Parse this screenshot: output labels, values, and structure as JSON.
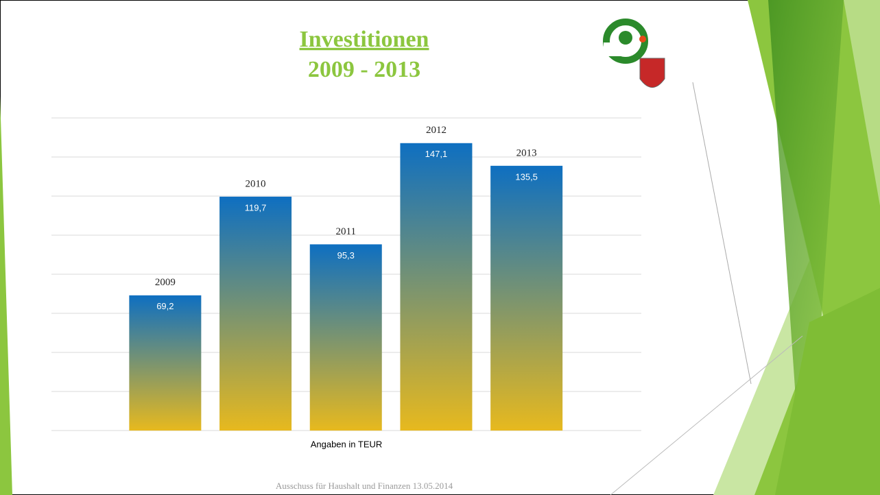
{
  "chart_data": {
    "type": "bar",
    "title": "Investitionen",
    "subtitle": "2009 - 2013",
    "categories": [
      "2009",
      "2010",
      "2011",
      "2012",
      "2013"
    ],
    "values": [
      69.2,
      119.7,
      95.3,
      147.1,
      135.5
    ],
    "value_labels": [
      "69,2",
      "119,7",
      "95,3",
      "147,1",
      "135,5"
    ],
    "x_label": "Angaben in TEUR",
    "footer": "Ausschuss für Haushalt und Finanzen 13.05.2014",
    "color": [
      "#0e6fc1",
      "#e7b91e"
    ],
    "ylim": [
      0,
      160
    ],
    "yticks": [
      0,
      20,
      40,
      60,
      80,
      100,
      120,
      140,
      160
    ],
    "grid": true
  }
}
